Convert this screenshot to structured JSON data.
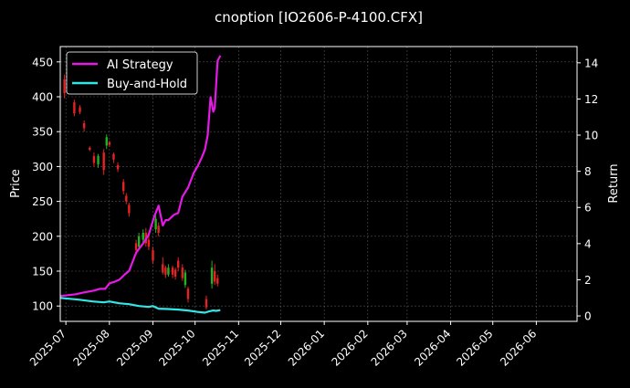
{
  "chart_data": {
    "type": "line",
    "title": "cnoption [IO2606-P-4100.CFX]",
    "ylabel": "Price",
    "y2label": "Return",
    "legend": {
      "placement": "top-left",
      "entries": [
        "AI Strategy",
        "Buy-and-Hold"
      ]
    },
    "grid": true,
    "xlim": [
      "2025-06-27",
      "2026-06-30"
    ],
    "ylim": [
      78,
      472
    ],
    "y2lim": [
      -0.3,
      14.9
    ],
    "x_ticks": [
      "2025-07",
      "2025-08",
      "2025-09",
      "2025-10",
      "2025-11",
      "2025-12",
      "2026-01",
      "2026-02",
      "2026-03",
      "2026-04",
      "2026-05",
      "2026-06"
    ],
    "x_tick_dates": [
      "2025-07-01",
      "2025-08-01",
      "2025-09-01",
      "2025-10-01",
      "2025-11-01",
      "2025-12-01",
      "2026-01-01",
      "2026-02-01",
      "2026-03-01",
      "2026-04-01",
      "2026-05-01",
      "2026-06-01"
    ],
    "y_ticks": [
      100,
      150,
      200,
      250,
      300,
      350,
      400,
      450
    ],
    "y2_ticks": [
      0,
      2,
      4,
      6,
      8,
      10,
      12,
      14
    ],
    "colors": {
      "background": "#000000",
      "ai": "#e619e6",
      "bh": "#33e6e6",
      "up": "#22b322",
      "down": "#e62222",
      "grid": "#555555"
    },
    "candles": [
      {
        "date": "2025-06-30",
        "open": 425,
        "close": 405,
        "high": 432,
        "low": 398
      },
      {
        "date": "2025-07-07",
        "open": 392,
        "close": 376,
        "high": 396,
        "low": 372
      },
      {
        "date": "2025-07-11",
        "open": 385,
        "close": 378,
        "high": 388,
        "low": 375
      },
      {
        "date": "2025-07-14",
        "open": 362,
        "close": 355,
        "high": 366,
        "low": 350
      },
      {
        "date": "2025-07-18",
        "open": 327,
        "close": 324,
        "high": 329,
        "low": 322
      },
      {
        "date": "2025-07-21",
        "open": 315,
        "close": 305,
        "high": 320,
        "low": 300
      },
      {
        "date": "2025-07-24",
        "open": 303,
        "close": 315,
        "high": 318,
        "low": 298
      },
      {
        "date": "2025-07-28",
        "open": 320,
        "close": 295,
        "high": 325,
        "low": 288
      },
      {
        "date": "2025-07-30",
        "open": 330,
        "close": 342,
        "high": 346,
        "low": 325
      },
      {
        "date": "2025-08-01",
        "open": 335,
        "close": 331,
        "high": 337,
        "low": 328
      },
      {
        "date": "2025-08-04",
        "open": 318,
        "close": 310,
        "high": 320,
        "low": 305
      },
      {
        "date": "2025-08-07",
        "open": 302,
        "close": 296,
        "high": 306,
        "low": 292
      },
      {
        "date": "2025-08-11",
        "open": 278,
        "close": 265,
        "high": 282,
        "low": 260
      },
      {
        "date": "2025-08-13",
        "open": 258,
        "close": 250,
        "high": 262,
        "low": 246
      },
      {
        "date": "2025-08-15",
        "open": 245,
        "close": 233,
        "high": 248,
        "low": 228
      },
      {
        "date": "2025-08-20",
        "open": 190,
        "close": 180,
        "high": 195,
        "low": 175
      },
      {
        "date": "2025-08-22",
        "open": 185,
        "close": 200,
        "high": 205,
        "low": 182
      },
      {
        "date": "2025-08-25",
        "open": 195,
        "close": 205,
        "high": 210,
        "low": 190
      },
      {
        "date": "2025-08-27",
        "open": 205,
        "close": 190,
        "high": 212,
        "low": 185
      },
      {
        "date": "2025-08-29",
        "open": 195,
        "close": 185,
        "high": 200,
        "low": 180
      },
      {
        "date": "2025-09-01",
        "open": 180,
        "close": 165,
        "high": 185,
        "low": 160
      },
      {
        "date": "2025-09-03",
        "open": 210,
        "close": 225,
        "high": 230,
        "low": 205
      },
      {
        "date": "2025-09-05",
        "open": 215,
        "close": 205,
        "high": 220,
        "low": 200
      },
      {
        "date": "2025-09-08",
        "open": 160,
        "close": 148,
        "high": 170,
        "low": 145
      },
      {
        "date": "2025-09-10",
        "open": 155,
        "close": 145,
        "high": 158,
        "low": 140
      },
      {
        "date": "2025-09-12",
        "open": 145,
        "close": 155,
        "high": 160,
        "low": 142
      },
      {
        "date": "2025-09-15",
        "open": 155,
        "close": 145,
        "high": 158,
        "low": 140
      },
      {
        "date": "2025-09-17",
        "open": 152,
        "close": 142,
        "high": 155,
        "low": 138
      },
      {
        "date": "2025-09-19",
        "open": 165,
        "close": 155,
        "high": 170,
        "low": 150
      },
      {
        "date": "2025-09-22",
        "open": 155,
        "close": 140,
        "high": 160,
        "low": 136
      },
      {
        "date": "2025-09-24",
        "open": 130,
        "close": 148,
        "high": 152,
        "low": 126
      },
      {
        "date": "2025-09-26",
        "open": 125,
        "close": 110,
        "high": 128,
        "low": 105
      },
      {
        "date": "2025-10-09",
        "open": 110,
        "close": 98,
        "high": 115,
        "low": 95
      },
      {
        "date": "2025-10-13",
        "open": 132,
        "close": 155,
        "high": 165,
        "low": 125
      },
      {
        "date": "2025-10-15",
        "open": 150,
        "close": 135,
        "high": 160,
        "low": 130
      },
      {
        "date": "2025-10-17",
        "open": 140,
        "close": 132,
        "high": 145,
        "low": 128
      }
    ],
    "series": [
      {
        "name": "AI Strategy",
        "axis": "right",
        "x": [
          "2025-06-27",
          "2025-07-08",
          "2025-07-14",
          "2025-07-21",
          "2025-07-25",
          "2025-07-29",
          "2025-08-01",
          "2025-08-05",
          "2025-08-08",
          "2025-08-12",
          "2025-08-15",
          "2025-08-20",
          "2025-08-25",
          "2025-08-29",
          "2025-09-02",
          "2025-09-05",
          "2025-09-08",
          "2025-09-10",
          "2025-09-12",
          "2025-09-16",
          "2025-09-19",
          "2025-09-22",
          "2025-09-26",
          "2025-09-30",
          "2025-10-03",
          "2025-10-06",
          "2025-10-08",
          "2025-10-10",
          "2025-10-12",
          "2025-10-14",
          "2025-10-15",
          "2025-10-17",
          "2025-10-19"
        ],
        "y": [
          1.1,
          1.2,
          1.3,
          1.4,
          1.5,
          1.5,
          1.8,
          1.9,
          2.0,
          2.3,
          2.5,
          3.5,
          4.0,
          4.5,
          5.5,
          6.1,
          5.0,
          5.3,
          5.3,
          5.6,
          5.7,
          6.6,
          7.1,
          7.9,
          8.3,
          8.8,
          9.2,
          10.0,
          12.1,
          11.3,
          11.5,
          14.1,
          14.4
        ]
      },
      {
        "name": "Buy-and-Hold",
        "axis": "right",
        "x": [
          "2025-06-27",
          "2025-07-10",
          "2025-07-20",
          "2025-07-28",
          "2025-08-01",
          "2025-08-08",
          "2025-08-15",
          "2025-08-22",
          "2025-08-29",
          "2025-09-01",
          "2025-09-05",
          "2025-09-12",
          "2025-09-19",
          "2025-09-26",
          "2025-10-03",
          "2025-10-08",
          "2025-10-11",
          "2025-10-14",
          "2025-10-16",
          "2025-10-19"
        ],
        "y": [
          1.0,
          0.9,
          0.8,
          0.75,
          0.8,
          0.7,
          0.65,
          0.55,
          0.5,
          0.55,
          0.4,
          0.38,
          0.35,
          0.3,
          0.22,
          0.18,
          0.25,
          0.3,
          0.28,
          0.32
        ]
      }
    ]
  }
}
